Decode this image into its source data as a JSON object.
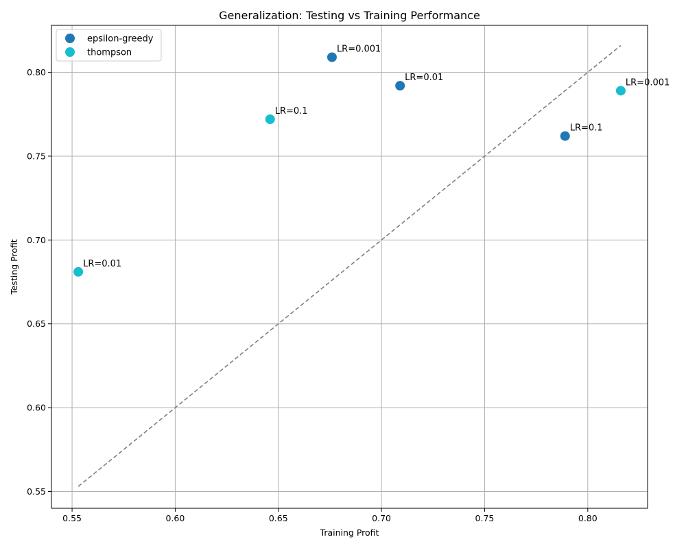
{
  "chart_data": {
    "type": "scatter",
    "title": "Generalization: Testing vs Training Performance",
    "xlabel": "Training Profit",
    "ylabel": "Testing Profit",
    "xlim": [
      0.54,
      0.829
    ],
    "ylim": [
      0.54,
      0.828
    ],
    "xticks": [
      "0.55",
      "0.60",
      "0.65",
      "0.70",
      "0.75",
      "0.80"
    ],
    "yticks": [
      "0.55",
      "0.60",
      "0.65",
      "0.70",
      "0.75",
      "0.80"
    ],
    "grid": true,
    "legend_position": "top-left",
    "reference_line": {
      "style": "dashed",
      "color": "#808080",
      "points": [
        [
          0.553,
          0.553
        ],
        [
          0.816,
          0.816
        ]
      ]
    },
    "series": [
      {
        "name": "epsilon-greedy",
        "color": "#1f77b4",
        "points": [
          {
            "x": 0.676,
            "y": 0.809,
            "label": "LR=0.001"
          },
          {
            "x": 0.709,
            "y": 0.792,
            "label": "LR=0.01"
          },
          {
            "x": 0.789,
            "y": 0.762,
            "label": "LR=0.1"
          }
        ]
      },
      {
        "name": "thompson",
        "color": "#17becf",
        "points": [
          {
            "x": 0.816,
            "y": 0.789,
            "label": "LR=0.001"
          },
          {
            "x": 0.646,
            "y": 0.772,
            "label": "LR=0.1"
          },
          {
            "x": 0.553,
            "y": 0.681,
            "label": "LR=0.01"
          }
        ]
      }
    ]
  }
}
